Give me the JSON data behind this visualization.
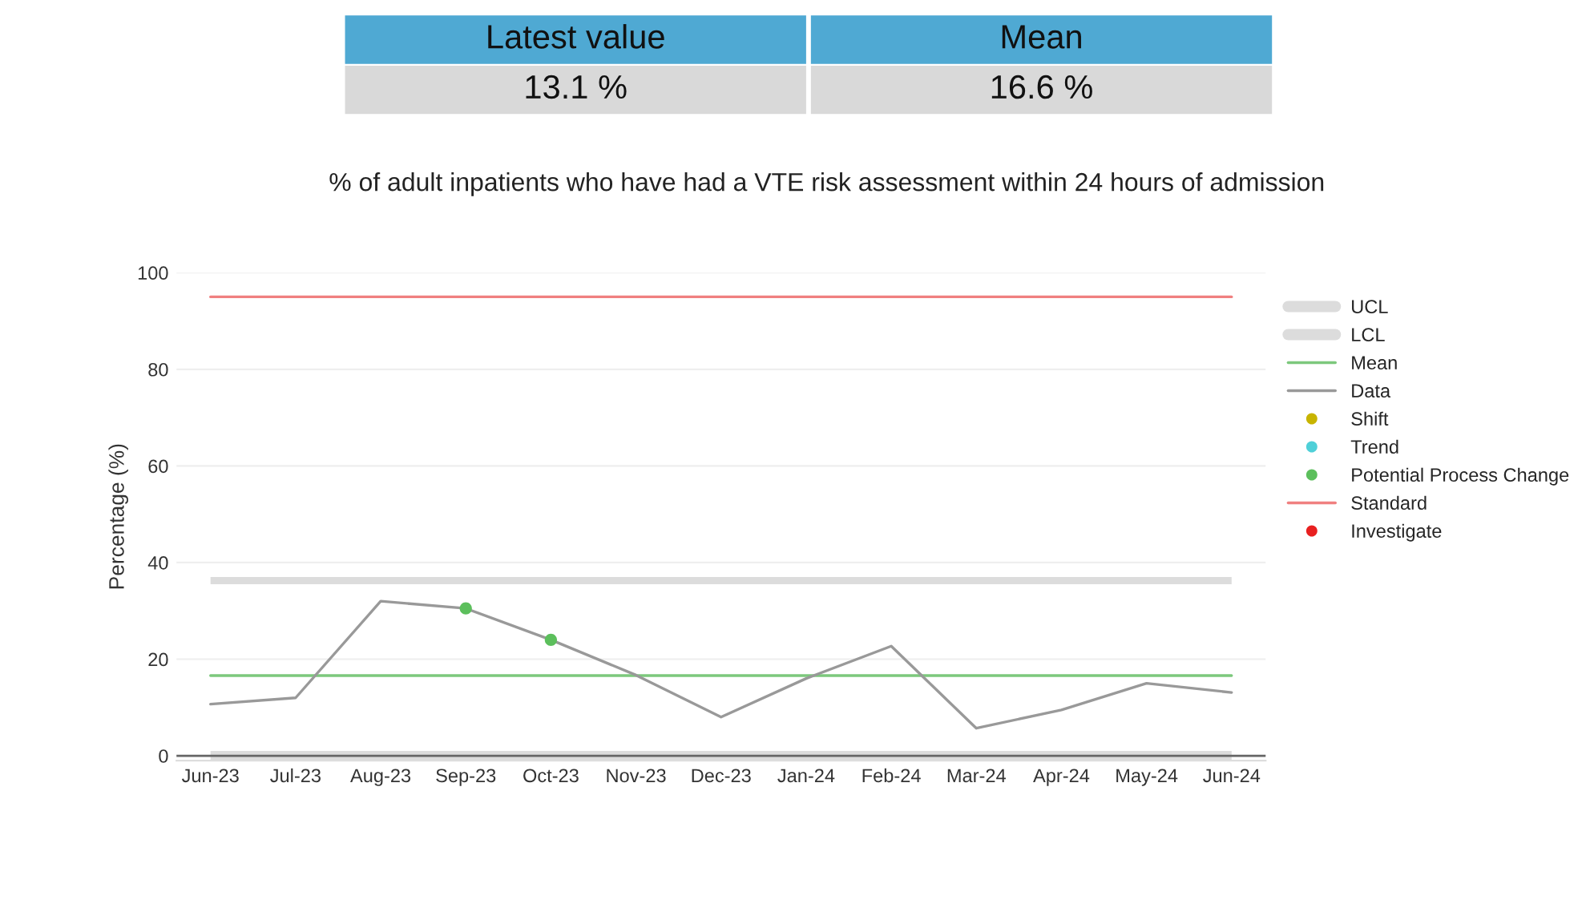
{
  "chart_data": {
    "type": "line",
    "title": "% of adult inpatients who have had a VTE risk assessment within 24 hours of admission",
    "ylabel": "Percentage (%)",
    "annotations": [
      "Latest value",
      "Mean",
      "13.1 %",
      "16.6 %"
    ],
    "categories": [
      "Jun-23",
      "Jul-23",
      "Aug-23",
      "Sep-23",
      "Oct-23",
      "Nov-23",
      "Dec-23",
      "Jan-24",
      "Feb-24",
      "Mar-24",
      "Apr-24",
      "May-24",
      "Jun-24"
    ],
    "series": [
      {
        "name": "Mean",
        "type": "line",
        "color": "#7cc87c",
        "values": [
          16.6,
          16.6,
          16.6,
          16.6,
          16.6,
          16.6,
          16.6,
          16.6,
          16.6,
          16.6,
          16.6,
          16.6,
          16.6
        ]
      },
      {
        "name": "Data",
        "color": "#999999",
        "values": [
          10.7,
          12,
          32,
          30.5,
          24,
          16.7,
          8,
          16,
          22.7,
          5.7,
          9.5,
          15,
          13.1
        ]
      },
      {
        "name": "Shift",
        "type": "scatter",
        "marker": "circle",
        "color": "#c8b400",
        "values": [
          null,
          null,
          null,
          null,
          null,
          null,
          null,
          null,
          null,
          null,
          null,
          null,
          null
        ]
      },
      {
        "name": "Trend",
        "type": "scatter",
        "marker": "circle",
        "color": "#4fd0d8",
        "values": [
          null,
          null,
          null,
          null,
          null,
          null,
          null,
          null,
          null,
          null,
          null,
          null,
          null
        ]
      },
      {
        "name": "Potential Process Change",
        "type": "scatter",
        "marker": "circle",
        "color": "#5cbf5c",
        "values": [
          null,
          null,
          null,
          30.5,
          24,
          null,
          null,
          null,
          null,
          null,
          null,
          null,
          null
        ]
      },
      {
        "name": "Standard",
        "type": "line",
        "color": "#f08080",
        "values": [
          95,
          95,
          95,
          95,
          95,
          95,
          95,
          95,
          95,
          95,
          95,
          95,
          95
        ]
      },
      {
        "name": "Investigate",
        "type": "scatter",
        "marker": "circle",
        "color": "#e82020",
        "values": [
          null,
          null,
          null,
          null,
          null,
          null,
          null,
          null,
          null,
          null,
          null,
          null,
          null
        ]
      }
    ],
    "bands": [
      {
        "axis": "y",
        "from": 35.5,
        "to": 37,
        "label": "UCL",
        "color": "#dcdcdc"
      },
      {
        "axis": "y",
        "from": -1,
        "to": 1,
        "label": "LCL",
        "color": "#dcdcdc"
      }
    ],
    "ref_lines": [
      {
        "axis": "y",
        "value": 0,
        "color": "#666666"
      }
    ],
    "ylim": [
      -1,
      100
    ],
    "yticks": [
      0,
      20,
      40,
      60,
      80,
      100
    ],
    "grid": "y",
    "legend": "right"
  }
}
